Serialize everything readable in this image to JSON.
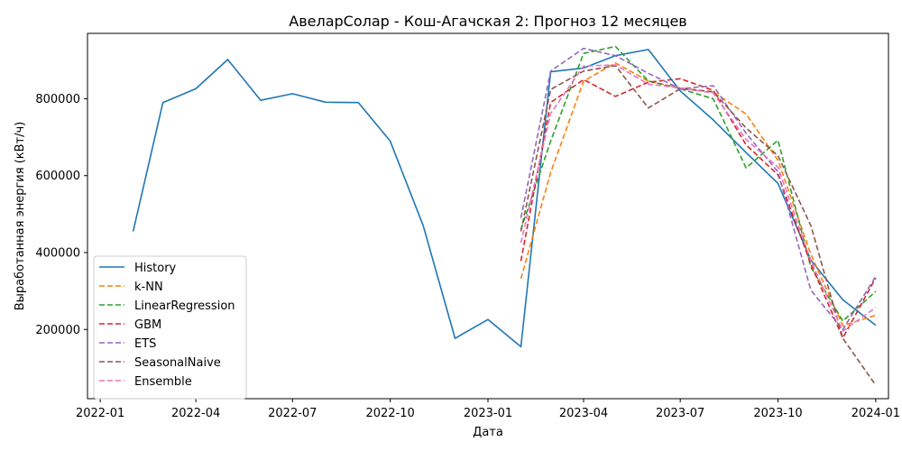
{
  "chart_data": {
    "type": "line",
    "title": "АвеларСолар - Кош-Агачская 2: Прогноз 12 месяцев",
    "xlabel": "Дата",
    "ylabel": "Выработанная энергия (кВт/ч)",
    "x_range": [
      "2021-12-20",
      "2024-01-13"
    ],
    "ylim": [
      20000,
      970000
    ],
    "x_ticks": [
      {
        "date": "2022-01-01",
        "label": "2022-01"
      },
      {
        "date": "2022-04-01",
        "label": "2022-04"
      },
      {
        "date": "2022-07-01",
        "label": "2022-07"
      },
      {
        "date": "2022-10-01",
        "label": "2022-10"
      },
      {
        "date": "2023-01-01",
        "label": "2023-01"
      },
      {
        "date": "2023-04-01",
        "label": "2023-04"
      },
      {
        "date": "2023-07-01",
        "label": "2023-07"
      },
      {
        "date": "2023-10-01",
        "label": "2023-10"
      },
      {
        "date": "2024-01-01",
        "label": "2024-01"
      }
    ],
    "y_ticks": [
      {
        "value": 200000,
        "label": "200000"
      },
      {
        "value": 400000,
        "label": "400000"
      },
      {
        "value": 600000,
        "label": "600000"
      },
      {
        "value": 800000,
        "label": "800000"
      }
    ],
    "grid": false,
    "legend_position": "lower-left",
    "series": [
      {
        "name": "History",
        "color": "#1f77b4",
        "dash": "solid",
        "x": [
          "2022-02-01",
          "2022-03-01",
          "2022-04-01",
          "2022-05-01",
          "2022-06-01",
          "2022-07-01",
          "2022-08-01",
          "2022-09-01",
          "2022-10-01",
          "2022-11-01",
          "2022-12-01",
          "2023-01-01",
          "2023-02-01",
          "2023-03-01",
          "2023-04-01",
          "2023-05-01",
          "2023-06-01",
          "2023-07-01",
          "2023-08-01",
          "2023-09-01",
          "2023-10-01",
          "2023-11-01",
          "2023-12-01",
          "2024-01-01"
        ],
        "values": [
          455000,
          790000,
          826000,
          902000,
          796000,
          813000,
          791000,
          790000,
          690000,
          470000,
          177000,
          226000,
          155000,
          870000,
          880000,
          912000,
          928000,
          820000,
          745000,
          660000,
          580000,
          380000,
          277000,
          211000
        ]
      },
      {
        "name": "k-NN",
        "color": "#ff7f0e",
        "dash": "dashed",
        "x": [
          "2023-02-01",
          "2023-03-01",
          "2023-04-01",
          "2023-05-01",
          "2023-06-01",
          "2023-07-01",
          "2023-08-01",
          "2023-09-01",
          "2023-10-01",
          "2023-11-01",
          "2023-12-01",
          "2024-01-01"
        ],
        "values": [
          332000,
          608000,
          846000,
          893000,
          846000,
          828000,
          818000,
          760000,
          640000,
          395000,
          210000,
          237000
        ]
      },
      {
        "name": "LinearRegression",
        "color": "#2ca02c",
        "dash": "dashed",
        "x": [
          "2023-02-01",
          "2023-03-01",
          "2023-04-01",
          "2023-05-01",
          "2023-06-01",
          "2023-07-01",
          "2023-08-01",
          "2023-09-01",
          "2023-10-01",
          "2023-11-01",
          "2023-12-01",
          "2024-01-01"
        ],
        "values": [
          460000,
          690000,
          918000,
          936000,
          846000,
          826000,
          800000,
          620000,
          692000,
          362000,
          222000,
          299000
        ]
      },
      {
        "name": "GBM",
        "color": "#d62728",
        "dash": "dashed",
        "x": [
          "2023-02-01",
          "2023-03-01",
          "2023-04-01",
          "2023-05-01",
          "2023-06-01",
          "2023-07-01",
          "2023-08-01",
          "2023-09-01",
          "2023-10-01",
          "2023-11-01",
          "2023-12-01",
          "2024-01-01"
        ],
        "values": [
          378000,
          790000,
          850000,
          806000,
          843000,
          852000,
          822000,
          680000,
          602000,
          370000,
          178000,
          334000
        ]
      },
      {
        "name": "ETS",
        "color": "#9467bd",
        "dash": "dashed",
        "x": [
          "2023-02-01",
          "2023-03-01",
          "2023-04-01",
          "2023-05-01",
          "2023-06-01",
          "2023-07-01",
          "2023-08-01",
          "2023-09-01",
          "2023-10-01",
          "2023-11-01",
          "2023-12-01",
          "2024-01-01"
        ],
        "values": [
          490000,
          872000,
          931000,
          912000,
          866000,
          826000,
          834000,
          710000,
          610000,
          302000,
          200000,
          338000
        ]
      },
      {
        "name": "SeasonalNaive",
        "color": "#8c564b",
        "dash": "dashed",
        "x": [
          "2023-02-01",
          "2023-03-01",
          "2023-04-01",
          "2023-05-01",
          "2023-06-01",
          "2023-07-01",
          "2023-08-01",
          "2023-09-01",
          "2023-10-01",
          "2023-11-01",
          "2023-12-01",
          "2024-01-01"
        ],
        "values": [
          455000,
          824000,
          872000,
          886000,
          776000,
          826000,
          818000,
          724000,
          652000,
          470000,
          177000,
          55000
        ]
      },
      {
        "name": "Ensemble",
        "color": "#e377c2",
        "dash": "dashed",
        "x": [
          "2023-02-01",
          "2023-03-01",
          "2023-04-01",
          "2023-05-01",
          "2023-06-01",
          "2023-07-01",
          "2023-08-01",
          "2023-09-01",
          "2023-10-01",
          "2023-11-01",
          "2023-12-01",
          "2024-01-01"
        ],
        "values": [
          425000,
          762000,
          885000,
          888000,
          838000,
          828000,
          815000,
          694000,
          622000,
          378000,
          196000,
          257000
        ]
      }
    ]
  }
}
